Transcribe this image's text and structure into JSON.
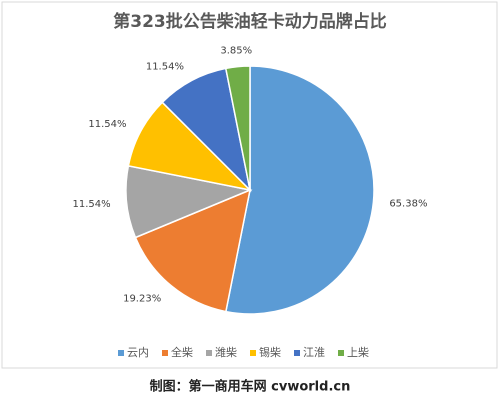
{
  "chart_data": {
    "type": "pie",
    "title": "第323批公告柴油轻卡动力品牌占比",
    "categories": [
      "云内",
      "全柴",
      "潍柴",
      "锡柴",
      "江淮",
      "上柴"
    ],
    "values": [
      65.38,
      19.23,
      11.54,
      11.54,
      11.54,
      3.85
    ],
    "value_labels": [
      "65.38%",
      "19.23%",
      "11.54%",
      "11.54%",
      "11.54%",
      "3.85%"
    ],
    "colors": [
      "#5b9bd5",
      "#ed7d31",
      "#a5a5a5",
      "#ffc000",
      "#4472c4",
      "#70ad47"
    ],
    "legend": "bottom"
  },
  "caption": "制图：第一商用车网 cvworld.cn"
}
